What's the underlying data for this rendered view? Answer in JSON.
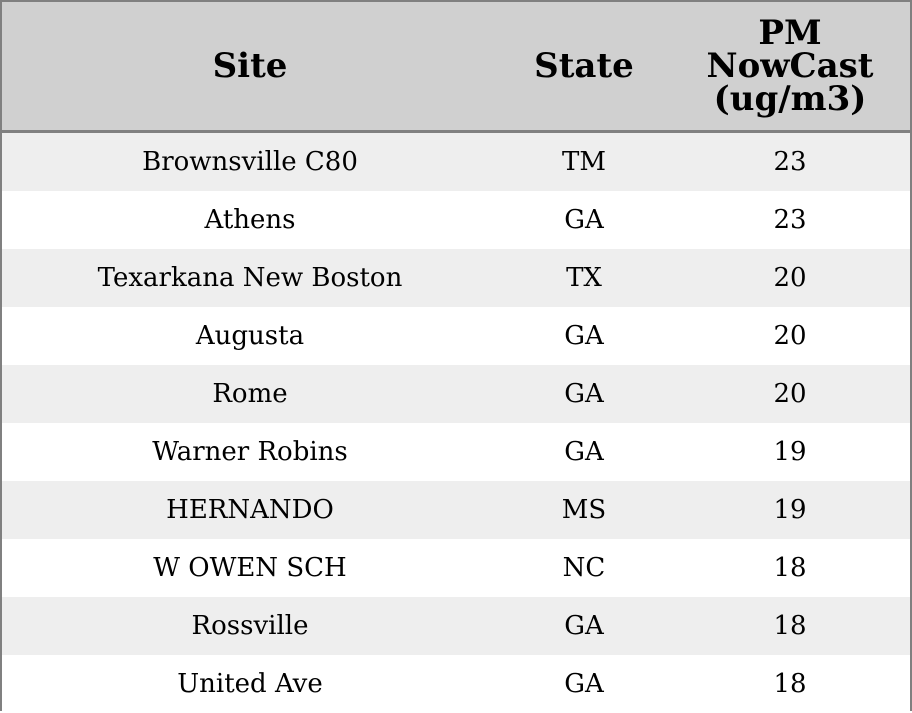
{
  "chart_data": {
    "type": "table",
    "columns": [
      "Site",
      "State",
      "PM\nNowCast\n(ug/m3)"
    ],
    "rows": [
      {
        "site": "Brownsville C80",
        "state": "TM",
        "pm": 23
      },
      {
        "site": "Athens",
        "state": "GA",
        "pm": 23
      },
      {
        "site": "Texarkana New Boston",
        "state": "TX",
        "pm": 20
      },
      {
        "site": "Augusta",
        "state": "GA",
        "pm": 20
      },
      {
        "site": "Rome",
        "state": "GA",
        "pm": 20
      },
      {
        "site": "Warner Robins",
        "state": "GA",
        "pm": 19
      },
      {
        "site": "HERNANDO",
        "state": "MS",
        "pm": 19
      },
      {
        "site": "W OWEN SCH",
        "state": "NC",
        "pm": 18
      },
      {
        "site": "Rossville",
        "state": "GA",
        "pm": 18
      },
      {
        "site": "United Ave",
        "state": "GA",
        "pm": 18
      }
    ]
  },
  "colors": {
    "header_bg": "#d0d0d0",
    "row_alt_bg": "#eeeeee",
    "row_bg": "#ffffff",
    "border": "#808080"
  }
}
